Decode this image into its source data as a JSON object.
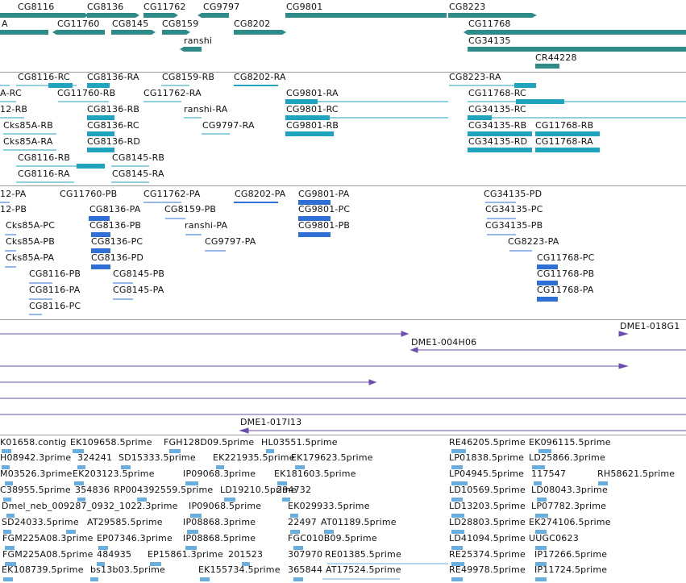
{
  "genes": [
    "CG8116",
    "CG8136",
    "CG11762",
    "CG9797",
    "CG9801",
    "CG8223",
    "A",
    "CG11760",
    "CG8145",
    "CG8159",
    "CG8202",
    "CG11768",
    "ranshi",
    "CG34135",
    "CR44228"
  ],
  "transcripts": [
    "CG8116-RC",
    "CG8136-RA",
    "CG8159-RB",
    "CG8202-RA",
    "CG8223-RA",
    "A-RC",
    "CG11760-RB",
    "CG11762-RA",
    "CG9801-RA",
    "CG11768-RC",
    "12-RB",
    "CG8136-RB",
    "ranshi-RA",
    "CG9801-RC",
    "CG34135-RC",
    "Cks85A-RB",
    "CG8136-RC",
    "CG9797-RA",
    "CG9801-RB",
    "CG34135-RB",
    "CG11768-RB",
    "Cks85A-RA",
    "CG8136-RD",
    "CG34135-RD",
    "CG11768-RA",
    "CG8116-RB",
    "CG8145-RB",
    "CG8116-RA",
    "CG8145-RA"
  ],
  "proteins": [
    "12-PA",
    "CG11760-PB",
    "CG11762-PA",
    "CG8202-PA",
    "CG9801-PA",
    "CG34135-PD",
    "12-PB",
    "CG8136-PA",
    "CG8159-PB",
    "CG9801-PC",
    "CG34135-PC",
    "Cks85A-PC",
    "CG8136-PB",
    "ranshi-PA",
    "CG9801-PB",
    "CG34135-PB",
    "Cks85A-PB",
    "CG8136-PC",
    "CG9797-PA",
    "CG8223-PA",
    "Cks85A-PA",
    "CG8136-PD",
    "CG11768-PC",
    "CG8116-PB",
    "CG8145-PB",
    "CG11768-PB",
    "CG8116-PA",
    "CG8145-PA",
    "CG11768-PA",
    "CG8116-PC"
  ],
  "clones": [
    "DME1-018G1",
    "DME1-004H06",
    "DME1-017I13"
  ],
  "ests": [
    "K01658.contig",
    "EK109658.5prime",
    "FGH128D09.5prime",
    "HL03551.5prime",
    "RE46205.5prime",
    "EK096115.5prime",
    "H08942.3prime",
    "324241",
    "SD15333.5prime",
    "EK221935.5prime",
    "EK179623.5prime",
    "LP01838.5prime",
    "LD25866.3prime",
    "M03526.3prime",
    "EK203123.5prime",
    "IP09068.3prime",
    "EK181603.5prime",
    "LP04945.5prime",
    "117547",
    "RH58621.5prime",
    "C38955.5prime",
    "354836",
    "RP004392559.5prime",
    "LD19210.5prime",
    "294732",
    "LD10569.5prime",
    "LD08043.3prime",
    "Dmel_neb_009287_0932_1022.3prime",
    "IP09068.5prime",
    "EK029933.5prime",
    "LD13203.5prime",
    "LP07782.3prime",
    "SD24033.5prime",
    "AT29585.5prime",
    "IP08868.3prime",
    "22497",
    "AT01189.5prime",
    "LD28803.5prime",
    "EK274106.5prime",
    "FGM225A08.3prime",
    "EP07346.3prime",
    "IP08868.5prime",
    "FGC010B09.5prime",
    "LD41094.5prime",
    "UUGC0623",
    "FGM225A08.5prime",
    "484935",
    "EP15861.3prime",
    "201523",
    "307970",
    "RE01385.5prime",
    "RE25374.5prime",
    "IP17266.5prime",
    "EK108739.5prime",
    "bs13b03.5prime",
    "EK155734.5prime",
    "365844",
    "AT17524.5prime",
    "RE49978.5prime",
    "IP11724.5prime"
  ],
  "colors": {
    "gene": "#2e8b87",
    "transcript": "#1fa3bf",
    "protein": "#2f6fd6",
    "clone": "#6a4fae",
    "est": "#6aaee0",
    "separator": "#9a9a9a"
  }
}
